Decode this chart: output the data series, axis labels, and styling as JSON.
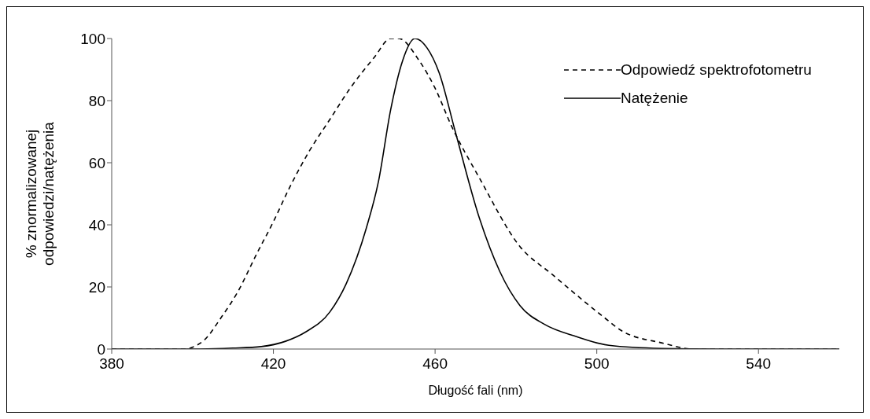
{
  "chart_data": {
    "type": "line",
    "xlabel": "Długość fali (nm)",
    "ylabel": "% znormalizowanej odpowiedzi/natężenia",
    "xlim": [
      380,
      560
    ],
    "xticks": [
      380,
      420,
      460,
      500,
      540
    ],
    "ylim": [
      0,
      100
    ],
    "yticks": [
      0,
      20,
      40,
      60,
      80,
      100
    ],
    "legend": "top right",
    "marker": "none",
    "series": [
      {
        "name": "Odpowiedź spektrofotometru",
        "color": "#000000",
        "line_style": "dashed",
        "x": [
          380,
          390,
          398,
          400,
          403,
          407,
          411,
          416,
          420,
          424,
          429,
          434,
          439,
          445,
          449,
          451,
          456,
          460,
          464,
          471,
          481,
          489,
          502,
          506,
          516,
          524,
          540,
          560
        ],
        "values": [
          0,
          0,
          0,
          0.6,
          3,
          10,
          18,
          31,
          41,
          52,
          64,
          74,
          84,
          94,
          100,
          100,
          93,
          84,
          72,
          55,
          33,
          24,
          10,
          6,
          2,
          0,
          0,
          0
        ]
      },
      {
        "name": "Natężenie",
        "color": "#000000",
        "line_style": "solid",
        "x": [
          380,
          390,
          400,
          410,
          417,
          423,
          428,
          434,
          438,
          443,
          446,
          449,
          452,
          455,
          458,
          461,
          465,
          471,
          476,
          481,
          487,
          495,
          503,
          516,
          530,
          560
        ],
        "values": [
          0,
          0,
          0,
          0.3,
          0.8,
          2.5,
          5.5,
          12,
          21,
          39,
          54,
          77,
          93,
          100,
          97,
          89,
          70,
          42,
          25,
          14,
          8,
          4,
          1.2,
          0.2,
          0,
          0
        ]
      }
    ]
  }
}
